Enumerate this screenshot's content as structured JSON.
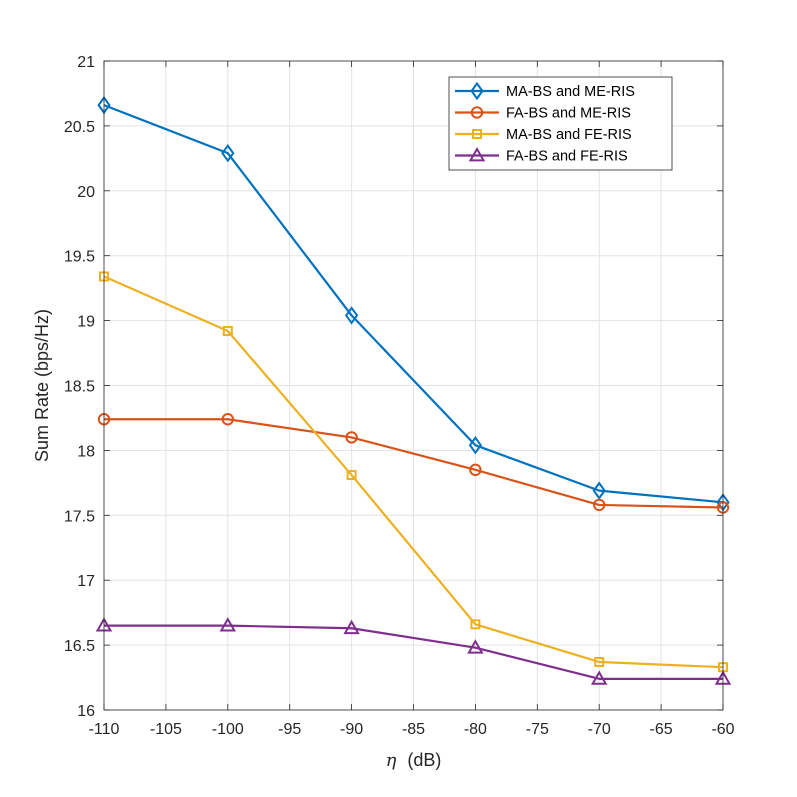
{
  "chart_data": {
    "type": "line",
    "title": "",
    "xlabel": {
      "symbol": "η",
      "unit": "(dB)"
    },
    "ylabel": "Sum Rate (bps/Hz)",
    "xlim": [
      -110,
      -60
    ],
    "ylim": [
      16,
      21
    ],
    "xticks": [
      "-110",
      "-105",
      "-100",
      "-95",
      "-90",
      "-85",
      "-80",
      "-75",
      "-70",
      "-65",
      "-60"
    ],
    "yticks": [
      "16",
      "16.5",
      "17",
      "17.5",
      "18",
      "18.5",
      "19",
      "19.5",
      "20",
      "20.5",
      "21"
    ],
    "grid": true,
    "legend_position": "top-right",
    "x": [
      -110,
      -100,
      -90,
      -80,
      -70,
      -60
    ],
    "series": [
      {
        "name": "MA-BS and ME-RIS",
        "color": "#0072BD",
        "marker": "diamond",
        "values": [
          20.66,
          20.29,
          19.04,
          18.04,
          17.69,
          17.6
        ]
      },
      {
        "name": "FA-BS and ME-RIS",
        "color": "#D95319",
        "marker": "circle",
        "values": [
          18.24,
          18.24,
          18.1,
          17.85,
          17.58,
          17.56
        ]
      },
      {
        "name": "MA-BS and FE-RIS",
        "color": "#EDB120",
        "marker": "square",
        "values": [
          19.34,
          18.92,
          17.81,
          16.66,
          16.37,
          16.33
        ]
      },
      {
        "name": "FA-BS and FE-RIS",
        "color": "#7E2F8E",
        "marker": "triangle",
        "values": [
          16.65,
          16.65,
          16.63,
          16.48,
          16.24,
          16.24
        ]
      }
    ]
  }
}
